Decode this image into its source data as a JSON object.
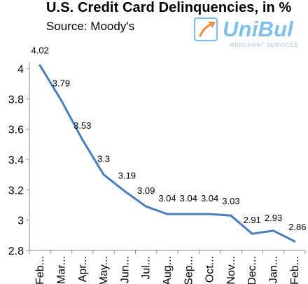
{
  "header": {
    "title": "U.S. Credit Card Delinquencies, in %",
    "subtitle": "Source: Moody's"
  },
  "logo": {
    "brand": "UniBul",
    "tagline": "MERCHANT SERVICES",
    "color": "#7fbfe9"
  },
  "colors": {
    "line": "#4a7ebb",
    "axis": "#8c8c8c"
  },
  "chart_data": {
    "type": "line",
    "title": "U.S. Credit Card Delinquencies, in %",
    "subtitle": "Source: Moody's",
    "xlabel": "",
    "ylabel": "",
    "categories": [
      "Feb...",
      "Mar...",
      "Apr...",
      "May...",
      "Jun...",
      "Jul...",
      "Aug...",
      "Sep...",
      "Oct...",
      "Nov...",
      "Dec...",
      "Jan...",
      "Feb..."
    ],
    "series": [
      {
        "values": [
          4.02,
          3.79,
          3.53,
          3.3,
          3.19,
          3.09,
          3.04,
          3.04,
          3.04,
          3.03,
          2.91,
          2.93,
          2.86
        ]
      }
    ],
    "data_labels": [
      "4.02",
      "3.79",
      "3.53",
      "3.3",
      "3.19",
      "3.09",
      "3.04",
      "3.04",
      "3.04",
      "3.03",
      "2.91",
      "2.93",
      "2.86"
    ],
    "ylim": [
      2.8,
      4.0
    ],
    "yticks": [
      2.8,
      3.0,
      3.2,
      3.4,
      3.6,
      3.8,
      4.0
    ],
    "ytick_labels": [
      "2.8",
      "3",
      "3.2",
      "3.4",
      "3.6",
      "3.8",
      "4"
    ],
    "grid": false,
    "legend": "none"
  }
}
